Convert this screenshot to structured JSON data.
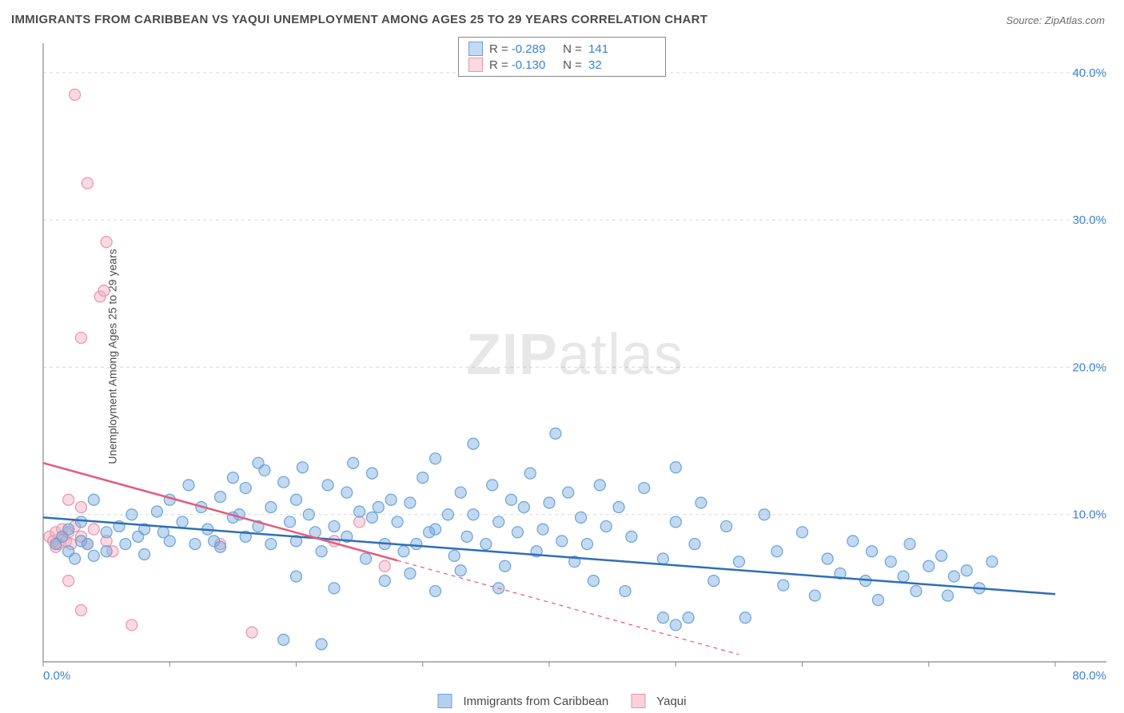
{
  "title": "IMMIGRANTS FROM CARIBBEAN VS YAQUI UNEMPLOYMENT AMONG AGES 25 TO 29 YEARS CORRELATION CHART",
  "source": "Source: ZipAtlas.com",
  "y_axis_label": "Unemployment Among Ages 25 to 29 years",
  "watermark_bold": "ZIP",
  "watermark_light": "atlas",
  "chart": {
    "type": "scatter",
    "background_color": "#ffffff",
    "grid_color": "#d9d9d9",
    "axis_color": "#888888",
    "xlim": [
      0,
      80
    ],
    "ylim": [
      0,
      42
    ],
    "x_tick_label_min": "0.0%",
    "x_tick_label_max": "80.0%",
    "x_tick_positions": [
      0,
      10,
      20,
      30,
      40,
      50,
      60,
      70,
      80
    ],
    "y_ticks": [
      {
        "v": 10,
        "label": "10.0%"
      },
      {
        "v": 20,
        "label": "20.0%"
      },
      {
        "v": 30,
        "label": "30.0%"
      },
      {
        "v": 40,
        "label": "40.0%"
      }
    ],
    "tick_label_color": "#3b82d4",
    "tick_label_fontsize": 15,
    "series": [
      {
        "name": "Immigrants from Caribbean",
        "marker_color_fill": "rgba(120,170,225,0.45)",
        "marker_color_stroke": "#6aa3d8",
        "line_color": "#2f6fb5",
        "marker_radius": 7,
        "trend": {
          "x1": 0,
          "y1": 9.8,
          "x2": 80,
          "y2": 4.6,
          "dash_from_x": null
        },
        "r_label": "R =",
        "r_value": "-0.289",
        "n_label": "N =",
        "n_value": "141",
        "points": [
          [
            1,
            8
          ],
          [
            1.5,
            8.5
          ],
          [
            2,
            7.5
          ],
          [
            2,
            9
          ],
          [
            2.5,
            7
          ],
          [
            3,
            8.2
          ],
          [
            3,
            9.5
          ],
          [
            3.5,
            8
          ],
          [
            4,
            11
          ],
          [
            4,
            7.2
          ],
          [
            5,
            8.8
          ],
          [
            5,
            7.5
          ],
          [
            6,
            9.2
          ],
          [
            6.5,
            8
          ],
          [
            7,
            10
          ],
          [
            7.5,
            8.5
          ],
          [
            8,
            9
          ],
          [
            8,
            7.3
          ],
          [
            9,
            10.2
          ],
          [
            9.5,
            8.8
          ],
          [
            10,
            11
          ],
          [
            10,
            8.2
          ],
          [
            11,
            9.5
          ],
          [
            11.5,
            12
          ],
          [
            12,
            8
          ],
          [
            12.5,
            10.5
          ],
          [
            13,
            9
          ],
          [
            13.5,
            8.2
          ],
          [
            14,
            11.2
          ],
          [
            14,
            7.8
          ],
          [
            15,
            12.5
          ],
          [
            15,
            9.8
          ],
          [
            15.5,
            10
          ],
          [
            16,
            8.5
          ],
          [
            16,
            11.8
          ],
          [
            17,
            9.2
          ],
          [
            17.5,
            13
          ],
          [
            18,
            10.5
          ],
          [
            18,
            8
          ],
          [
            19,
            12.2
          ],
          [
            19.5,
            9.5
          ],
          [
            20,
            11
          ],
          [
            20,
            8.2
          ],
          [
            20.5,
            13.2
          ],
          [
            21,
            10
          ],
          [
            21.5,
            8.8
          ],
          [
            22,
            7.5
          ],
          [
            22.5,
            12
          ],
          [
            23,
            9.2
          ],
          [
            23,
            5
          ],
          [
            24,
            11.5
          ],
          [
            24,
            8.5
          ],
          [
            24.5,
            13.5
          ],
          [
            25,
            10.2
          ],
          [
            25.5,
            7
          ],
          [
            26,
            9.8
          ],
          [
            26,
            12.8
          ],
          [
            27,
            8
          ],
          [
            27.5,
            11
          ],
          [
            28,
            9.5
          ],
          [
            28.5,
            7.5
          ],
          [
            29,
            10.8
          ],
          [
            29,
            6
          ],
          [
            30,
            12.5
          ],
          [
            30.5,
            8.8
          ],
          [
            31,
            13.8
          ],
          [
            31,
            9
          ],
          [
            32,
            10
          ],
          [
            32.5,
            7.2
          ],
          [
            33,
            11.5
          ],
          [
            33.5,
            8.5
          ],
          [
            34,
            14.8
          ],
          [
            34,
            10
          ],
          [
            35,
            8
          ],
          [
            35.5,
            12
          ],
          [
            36,
            9.5
          ],
          [
            36.5,
            6.5
          ],
          [
            37,
            11
          ],
          [
            37.5,
            8.8
          ],
          [
            38,
            10.5
          ],
          [
            38.5,
            12.8
          ],
          [
            39,
            7.5
          ],
          [
            39.5,
            9
          ],
          [
            40,
            10.8
          ],
          [
            40.5,
            15.5
          ],
          [
            41,
            8.2
          ],
          [
            41.5,
            11.5
          ],
          [
            42,
            6.8
          ],
          [
            42.5,
            9.8
          ],
          [
            43,
            8
          ],
          [
            43.5,
            5.5
          ],
          [
            44,
            12
          ],
          [
            44.5,
            9.2
          ],
          [
            45.5,
            10.5
          ],
          [
            46,
            4.8
          ],
          [
            46.5,
            8.5
          ],
          [
            47.5,
            11.8
          ],
          [
            49,
            3
          ],
          [
            49,
            7
          ],
          [
            50,
            13.2
          ],
          [
            50,
            9.5
          ],
          [
            50,
            2.5
          ],
          [
            51,
            3
          ],
          [
            51.5,
            8
          ],
          [
            52,
            10.8
          ],
          [
            53,
            5.5
          ],
          [
            54,
            9.2
          ],
          [
            55,
            6.8
          ],
          [
            55.5,
            3
          ],
          [
            57,
            10
          ],
          [
            58,
            7.5
          ],
          [
            58.5,
            5.2
          ],
          [
            60,
            8.8
          ],
          [
            61,
            4.5
          ],
          [
            62,
            7
          ],
          [
            63,
            6
          ],
          [
            64,
            8.2
          ],
          [
            65,
            5.5
          ],
          [
            65.5,
            7.5
          ],
          [
            66,
            4.2
          ],
          [
            67,
            6.8
          ],
          [
            68,
            5.8
          ],
          [
            68.5,
            8
          ],
          [
            69,
            4.8
          ],
          [
            70,
            6.5
          ],
          [
            71,
            7.2
          ],
          [
            71.5,
            4.5
          ],
          [
            72,
            5.8
          ],
          [
            73,
            6.2
          ],
          [
            74,
            5
          ],
          [
            75,
            6.8
          ],
          [
            19,
            1.5
          ],
          [
            22,
            1.2
          ],
          [
            27,
            5.5
          ],
          [
            31,
            4.8
          ],
          [
            26.5,
            10.5
          ],
          [
            29.5,
            8
          ],
          [
            33,
            6.2
          ],
          [
            36,
            5
          ],
          [
            17,
            13.5
          ],
          [
            20,
            5.8
          ]
        ]
      },
      {
        "name": "Yaqui",
        "marker_color_fill": "rgba(245,170,190,0.45)",
        "marker_color_stroke": "#e895aa",
        "line_color": "#e35a7a",
        "marker_radius": 7,
        "trend": {
          "x1": 0,
          "y1": 13.5,
          "x2": 55,
          "y2": 0.5,
          "dash_from_x": 28
        },
        "r_label": "R =",
        "r_value": "-0.130",
        "n_label": "N =",
        "n_value": "32",
        "points": [
          [
            0.5,
            8.5
          ],
          [
            0.8,
            8.2
          ],
          [
            1,
            8.8
          ],
          [
            1,
            7.8
          ],
          [
            1.2,
            8
          ],
          [
            1.5,
            8.5
          ],
          [
            1.5,
            9
          ],
          [
            1.8,
            8.2
          ],
          [
            2,
            8.8
          ],
          [
            2,
            11
          ],
          [
            2,
            5.5
          ],
          [
            2.2,
            8
          ],
          [
            2.5,
            9.2
          ],
          [
            2.5,
            38.5
          ],
          [
            3,
            8.5
          ],
          [
            3,
            10.5
          ],
          [
            3,
            3.5
          ],
          [
            3,
            22
          ],
          [
            3.5,
            8
          ],
          [
            3.5,
            32.5
          ],
          [
            4,
            9
          ],
          [
            4.5,
            24.8
          ],
          [
            4.8,
            25.2
          ],
          [
            5,
            8.2
          ],
          [
            5,
            28.5
          ],
          [
            5.5,
            7.5
          ],
          [
            7,
            2.5
          ],
          [
            14,
            8
          ],
          [
            16.5,
            2
          ],
          [
            23,
            8.2
          ],
          [
            25,
            9.5
          ],
          [
            27,
            6.5
          ]
        ]
      }
    ],
    "bottom_legend": [
      {
        "label": "Immigrants from Caribbean",
        "swatch_fill": "rgba(120,170,225,0.55)",
        "swatch_stroke": "#6aa3d8"
      },
      {
        "label": "Yaqui",
        "swatch_fill": "rgba(245,170,190,0.55)",
        "swatch_stroke": "#e895aa"
      }
    ]
  }
}
